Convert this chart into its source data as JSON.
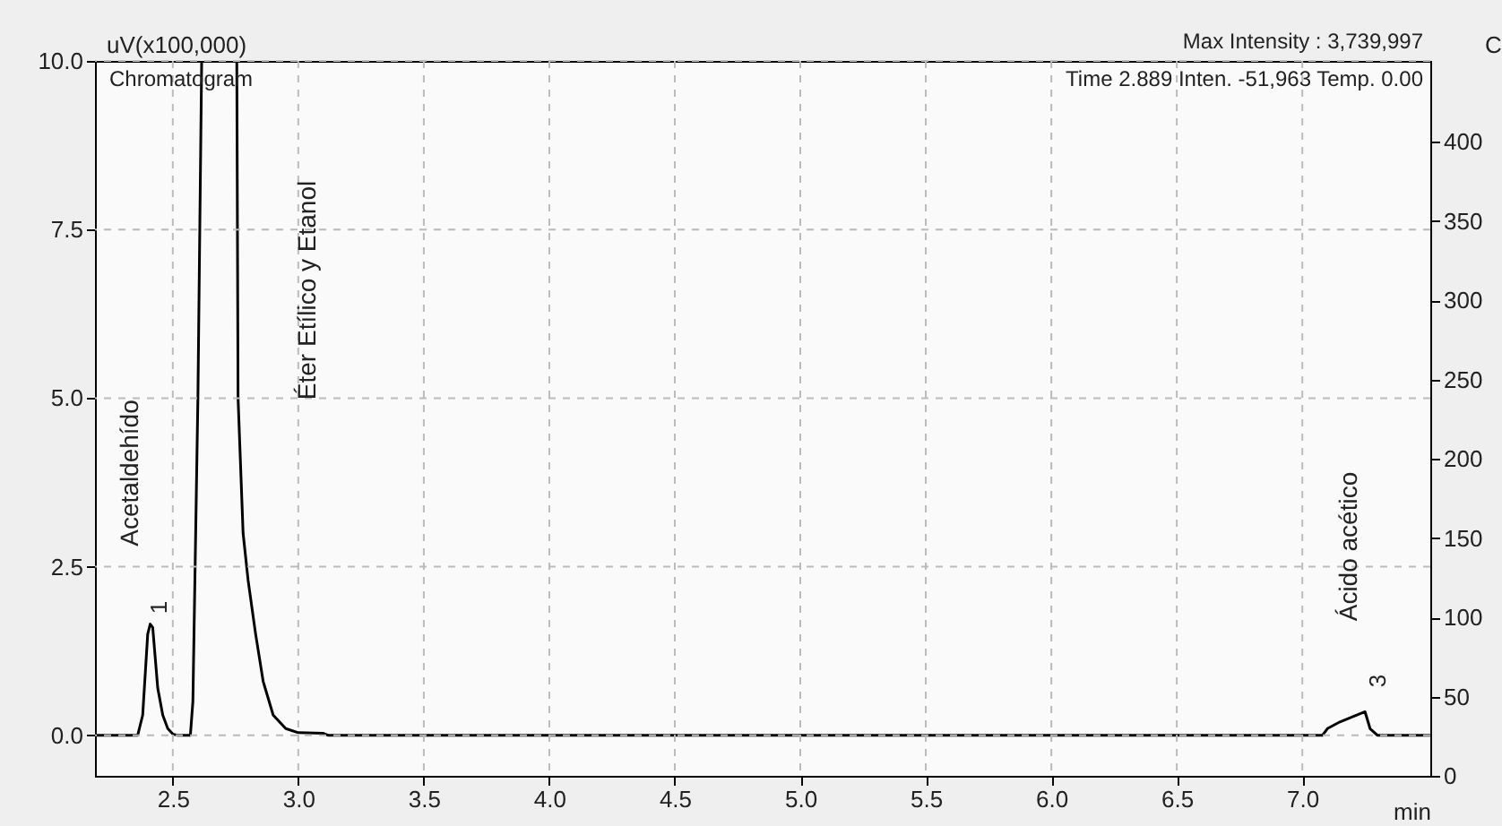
{
  "chart_data": {
    "type": "line",
    "xlabel": "min",
    "ylabel": "uV(x100,000)",
    "y2label": "C",
    "x": [
      2.19,
      2.36,
      2.38,
      2.4,
      2.41,
      2.42,
      2.44,
      2.46,
      2.48,
      2.5,
      2.52,
      2.57,
      2.58,
      2.6,
      2.615,
      null,
      2.755,
      2.76,
      2.78,
      2.8,
      2.83,
      2.86,
      2.9,
      2.95,
      3.0,
      3.1,
      3.12,
      7.08,
      7.1,
      7.15,
      7.25,
      7.27,
      7.3,
      7.51
    ],
    "series": [
      {
        "color": "#000000",
        "values": [
          0,
          0,
          0.3,
          1.5,
          1.65,
          1.6,
          0.7,
          0.3,
          0.1,
          0.02,
          0,
          0,
          0.5,
          5.0,
          10.0,
          null,
          10.0,
          5.0,
          3.0,
          2.3,
          1.5,
          0.8,
          0.3,
          0.1,
          0.04,
          0.03,
          0,
          0,
          0.1,
          0.2,
          0.35,
          0.1,
          0,
          0
        ]
      }
    ],
    "xlim": [
      2.19,
      7.51
    ],
    "xticks": [
      {
        "value": 2.5,
        "label": "2.5"
      },
      {
        "value": 3,
        "label": "3.0"
      },
      {
        "value": 3.5,
        "label": "3.5"
      },
      {
        "value": 4,
        "label": "4.0"
      },
      {
        "value": 4.5,
        "label": "4.5"
      },
      {
        "value": 5,
        "label": "5.0"
      },
      {
        "value": 5.5,
        "label": "5.5"
      },
      {
        "value": 6,
        "label": "6.0"
      },
      {
        "value": 6.5,
        "label": "6.5"
      },
      {
        "value": 7,
        "label": "7.0"
      }
    ],
    "ylim": [
      -0.6,
      10.0
    ],
    "yticks": [
      {
        "value": 0,
        "label": "0.0"
      },
      {
        "value": 2.5,
        "label": "2.5"
      },
      {
        "value": 5,
        "label": "5.0"
      },
      {
        "value": 7.5,
        "label": "7.5"
      },
      {
        "value": 10,
        "label": "10.0"
      }
    ],
    "y2lim": [
      0,
      451
    ],
    "y2ticks": [
      0,
      50,
      100,
      150,
      200,
      250,
      300,
      350,
      400
    ],
    "grid": true,
    "marker": "none",
    "line_style": "solid",
    "annotations": [
      "Chromatogram",
      "Time     2.889     Inten.                    -51,963     Temp.          0.00",
      "Max Intensity : 3,739,997",
      "Acetaldehído",
      "Éter Etílico y Etanol",
      "Ácido acético",
      "1",
      "3"
    ]
  }
}
